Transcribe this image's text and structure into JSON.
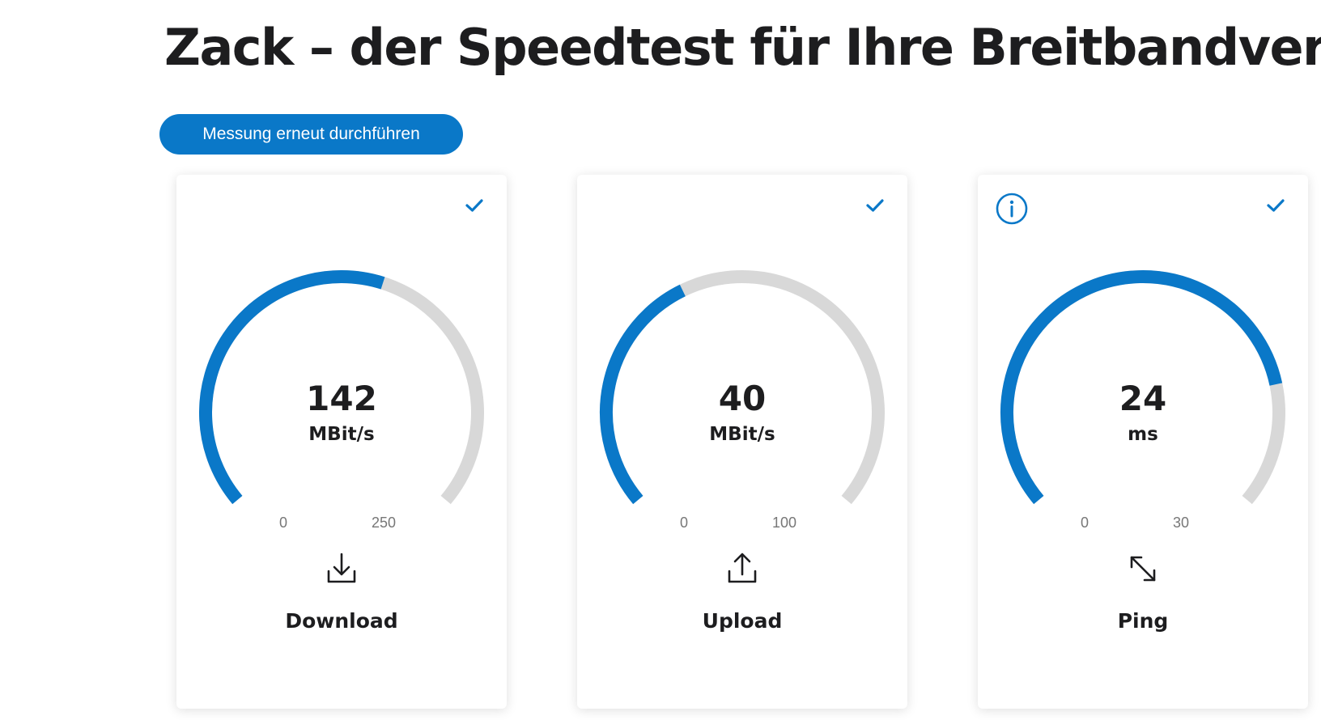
{
  "page": {
    "title": "Zack – der Speedtest für Ihre Breitbandverbindung"
  },
  "actions": {
    "rerun_label": "Messung erneut durchführen"
  },
  "colors": {
    "accent": "#0a78c8",
    "track": "#d8d8d8",
    "text": "#1d1d1f"
  },
  "cards": [
    {
      "label": "Download",
      "value": "142",
      "unit": "MBit/s",
      "min": "0",
      "max": "250",
      "fill_fraction": 0.568,
      "status": "check-icon",
      "icon": "download-icon"
    },
    {
      "label": "Upload",
      "value": "40",
      "unit": "MBit/s",
      "min": "0",
      "max": "100",
      "fill_fraction": 0.4,
      "status": "check-icon",
      "icon": "upload-icon"
    },
    {
      "label": "Ping",
      "value": "24",
      "unit": "ms",
      "min": "0",
      "max": "30",
      "fill_fraction": 0.8,
      "status": "check-icon",
      "info": "info-icon",
      "icon": "ping-arrows-icon"
    }
  ]
}
